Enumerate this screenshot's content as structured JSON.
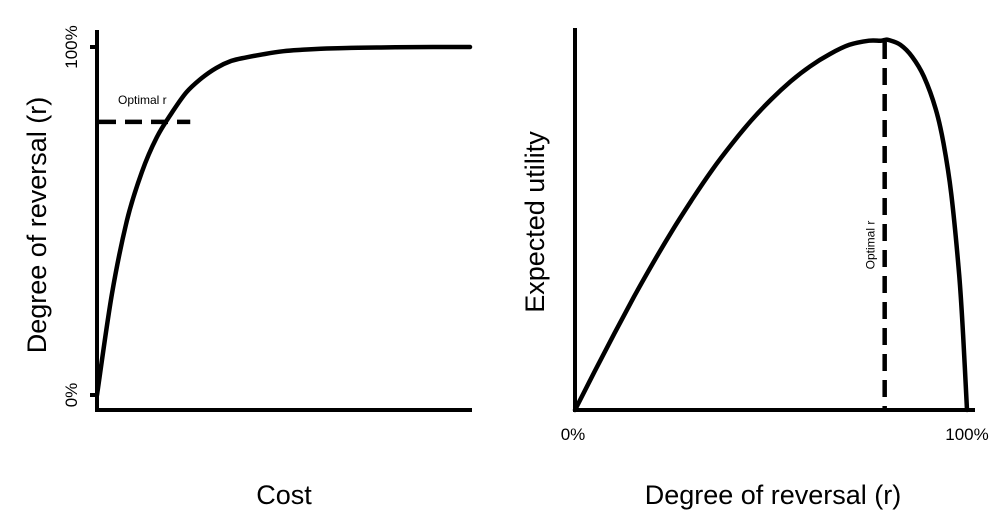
{
  "chart_data": [
    {
      "type": "line",
      "title": "",
      "xlabel": "Cost",
      "ylabel": "Degree of reversal (r)",
      "yticks": [
        "0%",
        "100%"
      ],
      "ylim": [
        0,
        100
      ],
      "xlim": [
        0,
        100
      ],
      "grid": false,
      "series": [
        {
          "x": [
            0,
            4,
            8,
            12,
            16,
            20,
            24,
            28,
            32,
            36,
            40,
            45,
            50,
            55,
            60,
            70,
            80,
            90,
            100
          ],
          "values": [
            0,
            29,
            50,
            64,
            74,
            81,
            87,
            91,
            94,
            96,
            97,
            98,
            98.8,
            99.2,
            99.5,
            99.8,
            99.9,
            100,
            100
          ]
        }
      ],
      "annotations": [
        {
          "text": "Optimal r",
          "y": 78.5,
          "x_end": 25,
          "style": "dashed-horizontal"
        }
      ]
    },
    {
      "type": "line",
      "title": "",
      "xlabel": "Degree of reversal (r)",
      "ylabel": "Expected utility",
      "xticks": [
        "0%",
        "100%"
      ],
      "xlim": [
        0,
        100
      ],
      "ylim": [
        0,
        100
      ],
      "grid": false,
      "series": [
        {
          "x": [
            0,
            5,
            10,
            15,
            20,
            25,
            30,
            35,
            40,
            45,
            50,
            55,
            60,
            65,
            70,
            75,
            78,
            79,
            80,
            83,
            86,
            89,
            92,
            94,
            96,
            98,
            99,
            100
          ],
          "values": [
            0,
            10.4,
            20.6,
            30.5,
            39.9,
            48.8,
            57.1,
            64.9,
            71.9,
            78.3,
            83.9,
            88.8,
            92.9,
            96.2,
            98.7,
            99.8,
            99.8,
            100,
            100,
            98.7,
            95.5,
            90.1,
            81.4,
            72.1,
            58.3,
            36.5,
            20.3,
            0
          ]
        }
      ],
      "annotations": [
        {
          "text": "Optimal r",
          "x": 79,
          "style": "dashed-vertical"
        }
      ]
    }
  ]
}
